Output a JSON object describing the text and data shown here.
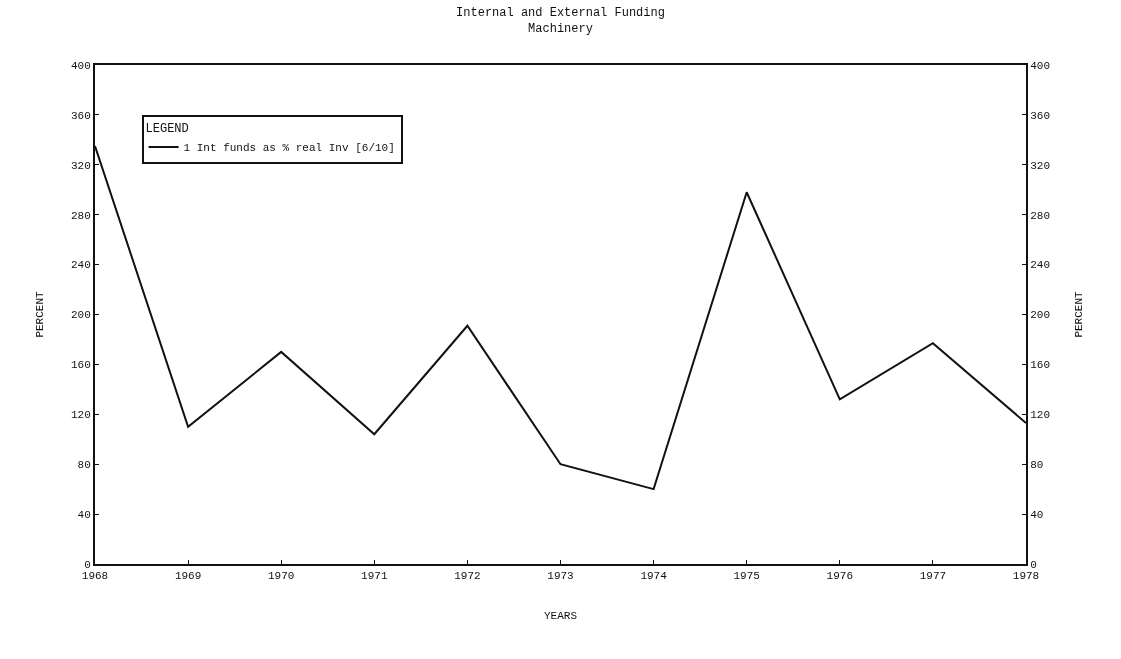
{
  "chart_data": {
    "type": "line",
    "title": "Internal and External Funding",
    "subtitle": "Machinery",
    "xlabel": "YEARS",
    "ylabel": "PERCENT",
    "y2label": "PERCENT",
    "legend_title": "LEGEND",
    "legend": "top left",
    "grid": false,
    "marker": "none",
    "line_style": "solid",
    "x": [
      1968,
      1969,
      1970,
      1971,
      1972,
      1973,
      1974,
      1975,
      1976,
      1977,
      1978
    ],
    "series": [
      {
        "name": "1 Int funds as % real Inv [6/10]",
        "color": "#111111",
        "values": [
          335,
          110,
          170,
          104,
          191,
          80,
          60,
          298,
          132,
          177,
          113
        ]
      }
    ],
    "xlim": [
      1968,
      1978
    ],
    "xticks": [
      1968,
      1969,
      1970,
      1971,
      1972,
      1973,
      1974,
      1975,
      1976,
      1977,
      1978
    ],
    "ylim": [
      0,
      400
    ],
    "yticks": [
      0,
      40,
      80,
      120,
      160,
      200,
      240,
      280,
      320,
      360,
      400
    ],
    "y2lim": [
      0,
      400
    ],
    "y2ticks": [
      0,
      40,
      80,
      120,
      160,
      200,
      240,
      280,
      320,
      360,
      400
    ]
  }
}
